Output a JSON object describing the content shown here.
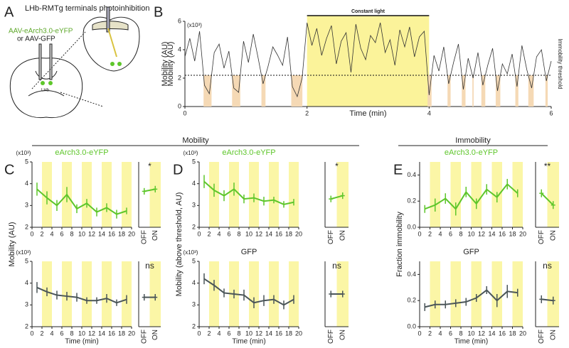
{
  "figure": {
    "panel_letters": [
      "A",
      "B",
      "C",
      "D",
      "E"
    ],
    "group_labels": [
      "Mobility",
      "Immobility"
    ]
  },
  "diagram": {
    "title": "LHb-RMTg terminals photoinhibition",
    "virus": "AAV-eArch3.0-eYFP",
    "alt_virus": "or AAV-GFP",
    "region": "LHb"
  },
  "chart_data": [
    {
      "type": "trace",
      "xlabel": "Time (min)",
      "ylabel": "Mobility (AU)",
      "yunit": "(x10³)",
      "annotation": "Constant light",
      "threshold": 2.2,
      "threshold_label": "Immobility threshold",
      "color": "#333333",
      "light_color": "#fbf39a",
      "band_color": "#f5d9b5",
      "xlim": [
        0,
        6
      ],
      "ylim": [
        0,
        6
      ],
      "xticks": [
        0,
        2,
        4,
        6
      ],
      "yticks": [
        0,
        2,
        4,
        6
      ],
      "light_intervals": [
        [
          2,
          4
        ]
      ],
      "x": [
        0,
        0.08,
        0.16,
        0.24,
        0.32,
        0.4,
        0.48,
        0.56,
        0.64,
        0.72,
        0.8,
        0.88,
        0.96,
        1.04,
        1.12,
        1.2,
        1.28,
        1.36,
        1.44,
        1.52,
        1.6,
        1.68,
        1.76,
        1.84,
        1.92,
        2,
        2.08,
        2.16,
        2.24,
        2.32,
        2.4,
        2.48,
        2.56,
        2.64,
        2.72,
        2.8,
        2.88,
        2.96,
        3.04,
        3.12,
        3.2,
        3.28,
        3.36,
        3.44,
        3.52,
        3.6,
        3.68,
        3.76,
        3.84,
        3.92,
        4,
        4.08,
        4.16,
        4.24,
        4.32,
        4.4,
        4.48,
        4.56,
        4.64,
        4.72,
        4.8,
        4.88,
        4.96,
        5.04,
        5.12,
        5.2,
        5.28,
        5.36,
        5.44,
        5.52,
        5.6,
        5.68,
        5.76,
        5.84,
        5.92,
        6
      ],
      "values": [
        3.5,
        4.8,
        3.2,
        5.3,
        1.5,
        0.9,
        3.8,
        4.4,
        2.7,
        3.9,
        1.3,
        1.0,
        4.6,
        3.1,
        5.1,
        3.4,
        1.6,
        2.8,
        4.2,
        3.6,
        2.9,
        4.9,
        1.4,
        0.7,
        2.0,
        5.9,
        4.3,
        5.5,
        3.6,
        4.8,
        5.7,
        3.0,
        4.6,
        5.2,
        2.4,
        5.8,
        4.1,
        3.3,
        5.0,
        4.5,
        5.9,
        3.8,
        4.7,
        2.9,
        5.4,
        4.2,
        5.6,
        3.5,
        4.9,
        5.3,
        0.8,
        3.6,
        2.5,
        4.2,
        1.6,
        3.1,
        4.4,
        1.2,
        3.4,
        2.0,
        3.8,
        1.5,
        2.9,
        4.1,
        1.1,
        3.0,
        2.3,
        3.7,
        1.4,
        4.3,
        2.6,
        1.3,
        3.5,
        4.0,
        1.8,
        3.2
      ]
    },
    {
      "type": "errline",
      "title": "eArch3.0-eYFP",
      "title_color": "#5ec62b",
      "ylabel": "Mobility (AU)",
      "yunit": "(x10³)",
      "color": "#5ec62b",
      "light_color": "#fbf6a6",
      "xlim": [
        0,
        20
      ],
      "ylim": [
        2,
        5
      ],
      "xticks": [
        0,
        2,
        4,
        6,
        8,
        10,
        12,
        14,
        16,
        18,
        20
      ],
      "yticks": [
        2,
        3,
        4,
        5
      ],
      "light_intervals": [
        [
          2,
          4
        ],
        [
          6,
          8
        ],
        [
          10,
          12
        ],
        [
          14,
          16
        ],
        [
          18,
          20
        ]
      ],
      "x": [
        1,
        3,
        5,
        7,
        9,
        11,
        13,
        15,
        17,
        19
      ],
      "values": [
        3.75,
        3.35,
        3.0,
        3.5,
        2.85,
        3.1,
        2.7,
        2.9,
        2.6,
        2.75
      ],
      "errors": [
        0.3,
        0.3,
        0.25,
        0.35,
        0.2,
        0.2,
        0.2,
        0.2,
        0.2,
        0.15
      ],
      "inset": {
        "categories": [
          "OFF",
          "ON"
        ],
        "values": [
          3.65,
          3.75
        ],
        "errors": [
          0.15,
          0.15
        ],
        "significance": "*"
      }
    },
    {
      "type": "errline",
      "yunit": "(x10³)",
      "xlabel": "Time (min)",
      "color": "#4a5558",
      "light_color": "#fbf6a6",
      "xlim": [
        0,
        20
      ],
      "ylim": [
        2,
        5
      ],
      "xticks": [
        0,
        2,
        4,
        6,
        8,
        10,
        12,
        14,
        16,
        18,
        20
      ],
      "yticks": [
        2,
        3,
        4,
        5
      ],
      "light_intervals": [
        [
          2,
          4
        ],
        [
          6,
          8
        ],
        [
          10,
          12
        ],
        [
          14,
          16
        ],
        [
          18,
          20
        ]
      ],
      "x": [
        1,
        3,
        5,
        7,
        9,
        11,
        13,
        15,
        17,
        19
      ],
      "values": [
        3.8,
        3.6,
        3.45,
        3.4,
        3.35,
        3.2,
        3.2,
        3.3,
        3.1,
        3.25
      ],
      "errors": [
        0.25,
        0.2,
        0.2,
        0.2,
        0.2,
        0.15,
        0.15,
        0.2,
        0.15,
        0.2
      ],
      "inset": {
        "categories": [
          "OFF",
          "ON"
        ],
        "values": [
          3.35,
          3.35
        ],
        "errors": [
          0.15,
          0.15
        ],
        "significance": "ns"
      }
    },
    {
      "type": "errline",
      "title": "eArch3.0-eYFP",
      "title_color": "#5ec62b",
      "ylabel": "Mobility (above threshold, AU)",
      "yunit": "(x10³)",
      "color": "#5ec62b",
      "light_color": "#fbf6a6",
      "xlim": [
        0,
        20
      ],
      "ylim": [
        2,
        5
      ],
      "xticks": [
        0,
        2,
        4,
        6,
        8,
        10,
        12,
        14,
        16,
        18,
        20
      ],
      "yticks": [
        2,
        3,
        4,
        5
      ],
      "light_intervals": [
        [
          2,
          4
        ],
        [
          6,
          8
        ],
        [
          10,
          12
        ],
        [
          14,
          16
        ],
        [
          18,
          20
        ]
      ],
      "x": [
        1,
        3,
        5,
        7,
        9,
        11,
        13,
        15,
        17,
        19
      ],
      "values": [
        4.1,
        3.7,
        3.45,
        3.75,
        3.3,
        3.35,
        3.2,
        3.25,
        3.05,
        3.15
      ],
      "errors": [
        0.3,
        0.3,
        0.25,
        0.3,
        0.2,
        0.2,
        0.2,
        0.15,
        0.15,
        0.15
      ],
      "inset": {
        "categories": [
          "OFF",
          "ON"
        ],
        "values": [
          3.3,
          3.45
        ],
        "errors": [
          0.15,
          0.15
        ],
        "significance": "*"
      }
    },
    {
      "type": "errline",
      "title": "GFP",
      "title_color": "#222222",
      "yunit": "(x10³)",
      "xlabel": "Time (min)",
      "color": "#4a5558",
      "light_color": "#fbf6a6",
      "xlim": [
        0,
        20
      ],
      "ylim": [
        2,
        5
      ],
      "xticks": [
        0,
        2,
        4,
        6,
        8,
        10,
        12,
        14,
        16,
        18,
        20
      ],
      "yticks": [
        2,
        3,
        4,
        5
      ],
      "light_intervals": [
        [
          2,
          4
        ],
        [
          6,
          8
        ],
        [
          10,
          12
        ],
        [
          14,
          16
        ],
        [
          18,
          20
        ]
      ],
      "x": [
        1,
        3,
        5,
        7,
        9,
        11,
        13,
        15,
        17,
        19
      ],
      "values": [
        4.2,
        3.9,
        3.55,
        3.5,
        3.45,
        3.1,
        3.2,
        3.25,
        3.0,
        3.25
      ],
      "errors": [
        0.25,
        0.25,
        0.2,
        0.2,
        0.25,
        0.25,
        0.25,
        0.2,
        0.2,
        0.2
      ],
      "inset": {
        "categories": [
          "OFF",
          "ON"
        ],
        "values": [
          3.5,
          3.5
        ],
        "errors": [
          0.15,
          0.15
        ],
        "significance": "ns"
      }
    },
    {
      "type": "errline",
      "title": "eArch3.0-eYFP",
      "title_color": "#5ec62b",
      "ylabel": "Fraction immobility",
      "color": "#5ec62b",
      "light_color": "#fbf6a6",
      "xlim": [
        0,
        20
      ],
      "ylim": [
        0,
        0.5
      ],
      "xticks": [
        0,
        2,
        4,
        6,
        8,
        10,
        12,
        14,
        16,
        18,
        20
      ],
      "yticks": [
        {
          "value": 0,
          "label": "0.0"
        },
        0.2,
        0.4
      ],
      "light_intervals": [
        [
          2,
          4
        ],
        [
          6,
          8
        ],
        [
          10,
          12
        ],
        [
          14,
          16
        ],
        [
          18,
          20
        ]
      ],
      "x": [
        1,
        3,
        5,
        7,
        9,
        11,
        13,
        15,
        17,
        19
      ],
      "values": [
        0.14,
        0.17,
        0.22,
        0.14,
        0.27,
        0.18,
        0.29,
        0.23,
        0.33,
        0.26
      ],
      "errors": [
        0.03,
        0.05,
        0.04,
        0.05,
        0.04,
        0.04,
        0.04,
        0.04,
        0.04,
        0.03
      ],
      "inset": {
        "categories": [
          "OFF",
          "ON"
        ],
        "values": [
          0.26,
          0.17
        ],
        "errors": [
          0.03,
          0.03
        ],
        "significance": "**"
      }
    },
    {
      "type": "errline",
      "title": "GFP",
      "title_color": "#222222",
      "xlabel": "Time (min)",
      "color": "#4a5558",
      "light_color": "#fbf6a6",
      "xlim": [
        0,
        20
      ],
      "ylim": [
        0,
        0.5
      ],
      "xticks": [
        0,
        2,
        4,
        6,
        8,
        10,
        12,
        14,
        16,
        18,
        20
      ],
      "yticks": [
        {
          "value": 0,
          "label": "0.0"
        },
        0.2,
        0.4
      ],
      "light_intervals": [
        [
          2,
          4
        ],
        [
          6,
          8
        ],
        [
          10,
          12
        ],
        [
          14,
          16
        ],
        [
          18,
          20
        ]
      ],
      "x": [
        1,
        3,
        5,
        7,
        9,
        11,
        13,
        15,
        17,
        19
      ],
      "values": [
        0.15,
        0.17,
        0.17,
        0.18,
        0.19,
        0.22,
        0.28,
        0.2,
        0.27,
        0.26
      ],
      "errors": [
        0.03,
        0.03,
        0.03,
        0.03,
        0.03,
        0.03,
        0.03,
        0.05,
        0.05,
        0.03
      ],
      "inset": {
        "categories": [
          "OFF",
          "ON"
        ],
        "values": [
          0.21,
          0.2
        ],
        "errors": [
          0.03,
          0.03
        ],
        "significance": "ns"
      }
    }
  ]
}
